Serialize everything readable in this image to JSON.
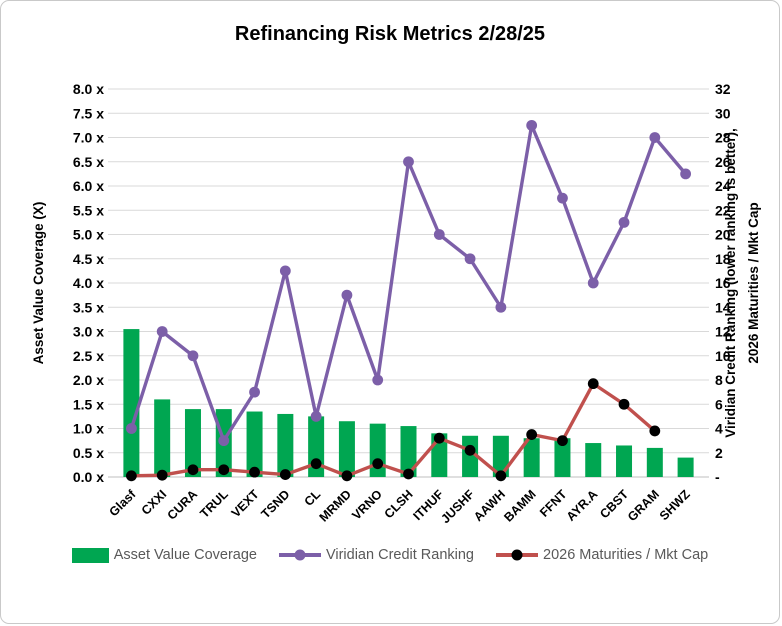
{
  "chart_data": {
    "type": "combo-bar-line",
    "title": "Refinancing Risk Metrics 2/28/25",
    "categories": [
      "Glasf",
      "CXXI",
      "CURA",
      "TRUL",
      "VEXT",
      "TSND",
      "CL",
      "MRMD",
      "VRNO",
      "CLSH",
      "ITHUF",
      "JUSHF",
      "AAWH",
      "BAMM",
      "FFNT",
      "AYR.A",
      "CBST",
      "GRAM",
      "SHWZ"
    ],
    "series": [
      {
        "name": "Asset Value Coverage",
        "type": "bar",
        "axis": "left",
        "color": "#00a651",
        "values": [
          3.05,
          1.6,
          1.4,
          1.4,
          1.35,
          1.3,
          1.25,
          1.15,
          1.1,
          1.05,
          0.9,
          0.85,
          0.85,
          0.8,
          0.8,
          0.7,
          0.65,
          0.6,
          0.4
        ]
      },
      {
        "name": "Viridian Credit Ranking",
        "type": "line",
        "axis": "right",
        "color": "#7c5fa8",
        "marker_color": "#7c5fa8",
        "values": [
          4,
          12,
          10,
          3,
          7,
          17,
          5,
          15,
          8,
          26,
          20,
          18,
          14,
          29,
          23,
          16,
          21,
          28,
          25
        ]
      },
      {
        "name": "2026 Maturities / Mkt Cap",
        "type": "line",
        "axis": "right",
        "color": "#c0504d",
        "marker_color": "#000000",
        "values": [
          0.1,
          0.15,
          0.6,
          0.6,
          0.4,
          0.2,
          1.1,
          0.1,
          1.1,
          0.25,
          3.2,
          2.2,
          0.1,
          3.5,
          3.0,
          7.7,
          6.0,
          3.8,
          null
        ]
      }
    ],
    "left_axis": {
      "title": "Asset Value Coverage (X)",
      "min": 0,
      "max": 8,
      "step": 0.5,
      "ticks": [
        "0.0 x",
        "0.5 x",
        "1.0 x",
        "1.5 x",
        "2.0 x",
        "2.5 x",
        "3.0 x",
        "3.5 x",
        "4.0 x",
        "4.5 x",
        "5.0 x",
        "5.5 x",
        "6.0 x",
        "6.5 x",
        "7.0 x",
        "7.5 x",
        "8.0 x"
      ]
    },
    "right_axis": {
      "title_line1": "Viridian Credit Ranking (lower ranking is better),",
      "title_line2": "2026 Maturities / Mkt Cap",
      "min": 0,
      "max": 32,
      "step": 2,
      "ticks": [
        "-",
        "2",
        "4",
        "6",
        "8",
        "10",
        "12",
        "14",
        "16",
        "18",
        "20",
        "22",
        "24",
        "26",
        "28",
        "30",
        "32"
      ]
    },
    "legend_position": "bottom",
    "grid": true,
    "colors": {
      "gridline": "#d9d9d9",
      "axis_line": "#bfbfbf",
      "legend_text": "#595959"
    }
  }
}
